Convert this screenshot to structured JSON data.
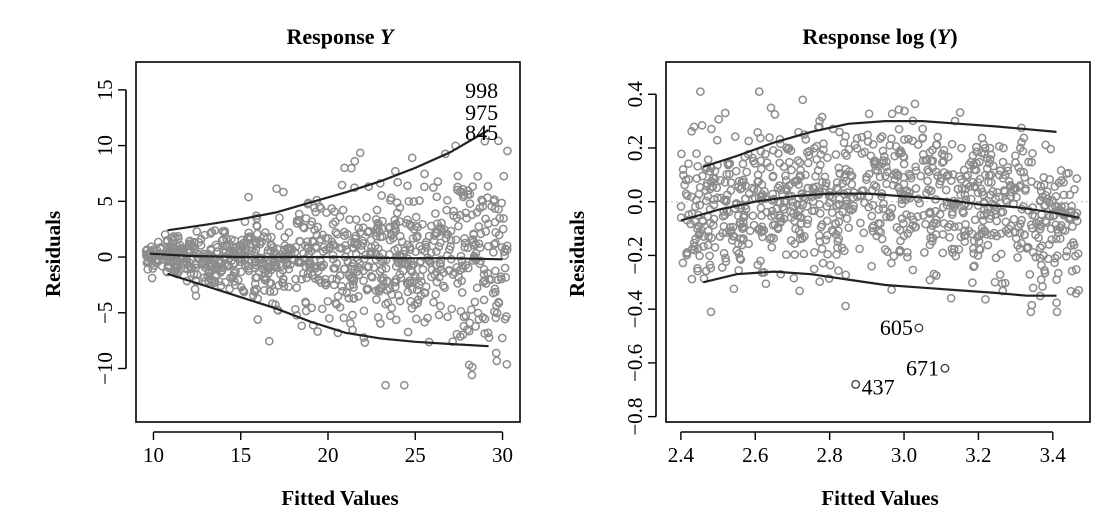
{
  "chart_data": [
    {
      "type": "scatter",
      "title": "Response Y",
      "title_prefix": "Response ",
      "title_var": "Y",
      "xlabel": "Fitted Values",
      "ylabel": "Residuals",
      "xlim": [
        9.0,
        31.0
      ],
      "ylim": [
        -14.8,
        17.5
      ],
      "xticks": [
        10,
        15,
        20,
        25,
        30
      ],
      "yticks": [
        -10,
        -5,
        0,
        5,
        10,
        15
      ],
      "grid": false,
      "n_points": 1000,
      "x_range": [
        9.5,
        30.3
      ],
      "point_color": "#8c8c8c",
      "annotations": [
        {
          "label": "998",
          "x": 28.8,
          "y": 15.0
        },
        {
          "label": "975",
          "x": 28.8,
          "y": 13.0
        },
        {
          "label": "845",
          "x": 28.8,
          "y": 11.2
        }
      ],
      "smooth_lines": [
        {
          "name": "upper",
          "points": [
            [
              10.8,
              2.4
            ],
            [
              13,
              2.9
            ],
            [
              15,
              3.4
            ],
            [
              17,
              4.0
            ],
            [
              19,
              4.9
            ],
            [
              21,
              5.8
            ],
            [
              23,
              6.8
            ],
            [
              25,
              8.0
            ],
            [
              27,
              9.4
            ],
            [
              29.2,
              11.4
            ]
          ]
        },
        {
          "name": "center",
          "points": [
            [
              9.8,
              0.3
            ],
            [
              12,
              0.1
            ],
            [
              15,
              0.0
            ],
            [
              18,
              0.0
            ],
            [
              21,
              0.0
            ],
            [
              24,
              -0.1
            ],
            [
              27,
              -0.1
            ],
            [
              30,
              -0.2
            ]
          ]
        },
        {
          "name": "lower",
          "points": [
            [
              10.8,
              -1.5
            ],
            [
              13,
              -2.6
            ],
            [
              15,
              -3.6
            ],
            [
              17,
              -4.6
            ],
            [
              19,
              -5.8
            ],
            [
              21,
              -6.8
            ],
            [
              23,
              -7.3
            ],
            [
              25,
              -7.6
            ],
            [
              27,
              -7.8
            ],
            [
              29.2,
              -8.0
            ]
          ]
        }
      ]
    },
    {
      "type": "scatter",
      "title": "Response log (Y)",
      "title_prefix": "Response log (",
      "title_var": "Y",
      "title_suffix": ")",
      "xlabel": "Fitted Values",
      "ylabel": "Residuals",
      "xlim": [
        2.36,
        3.5
      ],
      "ylim": [
        -0.82,
        0.52
      ],
      "xticks": [
        2.4,
        2.6,
        2.8,
        3.0,
        3.2,
        3.4
      ],
      "xtick_labels": [
        "2.4",
        "2.6",
        "2.8",
        "3.0",
        "3.2",
        "3.4"
      ],
      "yticks": [
        -0.8,
        -0.6,
        -0.4,
        -0.2,
        0.0,
        0.2,
        0.4
      ],
      "ytick_labels": [
        "−0.8",
        "−0.6",
        "−0.4",
        "−0.2",
        "0.0",
        "0.2",
        "0.4"
      ],
      "grid": false,
      "n_points": 1000,
      "x_range": [
        2.4,
        3.47
      ],
      "point_color": "#8c8c8c",
      "outliers": [
        {
          "label": "605",
          "x": 3.04,
          "y": -0.47
        },
        {
          "label": "671",
          "x": 3.11,
          "y": -0.62
        },
        {
          "label": "437",
          "x": 2.87,
          "y": -0.68
        }
      ],
      "smooth_lines": [
        {
          "name": "upper",
          "points": [
            [
              2.46,
              0.13
            ],
            [
              2.55,
              0.17
            ],
            [
              2.65,
              0.22
            ],
            [
              2.75,
              0.26
            ],
            [
              2.85,
              0.29
            ],
            [
              2.95,
              0.3
            ],
            [
              3.05,
              0.3
            ],
            [
              3.15,
              0.29
            ],
            [
              3.25,
              0.28
            ],
            [
              3.33,
              0.27
            ],
            [
              3.41,
              0.26
            ]
          ]
        },
        {
          "name": "center",
          "points": [
            [
              2.4,
              -0.07
            ],
            [
              2.5,
              -0.03
            ],
            [
              2.6,
              0.0
            ],
            [
              2.7,
              0.02
            ],
            [
              2.8,
              0.03
            ],
            [
              2.9,
              0.03
            ],
            [
              3.0,
              0.02
            ],
            [
              3.1,
              0.01
            ],
            [
              3.2,
              -0.01
            ],
            [
              3.3,
              -0.02
            ],
            [
              3.4,
              -0.04
            ],
            [
              3.47,
              -0.06
            ]
          ]
        },
        {
          "name": "lower",
          "points": [
            [
              2.46,
              -0.3
            ],
            [
              2.55,
              -0.27
            ],
            [
              2.65,
              -0.26
            ],
            [
              2.75,
              -0.27
            ],
            [
              2.85,
              -0.29
            ],
            [
              2.95,
              -0.31
            ],
            [
              3.05,
              -0.32
            ],
            [
              3.15,
              -0.33
            ],
            [
              3.25,
              -0.34
            ],
            [
              3.33,
              -0.35
            ],
            [
              3.41,
              -0.35
            ]
          ]
        }
      ]
    }
  ]
}
